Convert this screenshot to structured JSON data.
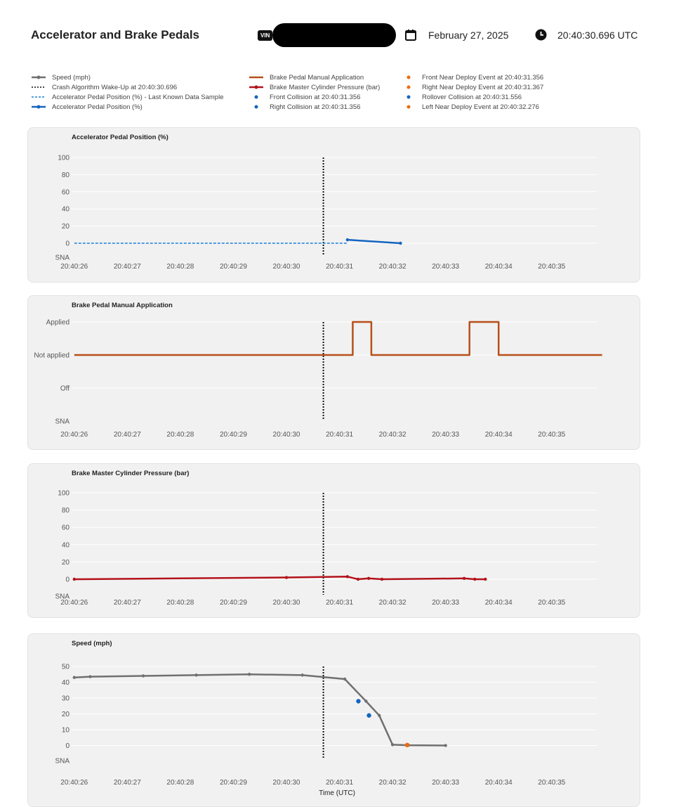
{
  "header": {
    "title": "Accelerator and Brake Pedals",
    "vin_label": "VIN",
    "date": "February 27, 2025",
    "time": "20:40:30.696 UTC"
  },
  "colors": {
    "speed": "#707070",
    "crash_line": "#111111",
    "accel_last_known": "#1f7fd6",
    "accel": "#1565c0",
    "brake_manual": "#b8501a",
    "brake_pressure": "#b3121b",
    "collision_dot": "#1565c0",
    "near_deploy_dot": "#f06a10",
    "grid": "#ffffff"
  },
  "legend": {
    "col1": [
      {
        "label": "Speed (mph)",
        "icon": "line-dot-gray"
      },
      {
        "label": "Crash Algorithm Wake-Up at 20:40:30.696",
        "icon": "dotted-black"
      },
      {
        "label": "Accelerator Pedal Position (%) - Last Known Data Sample",
        "icon": "dashed-blue"
      },
      {
        "label": "Accelerator Pedal Position (%)",
        "icon": "line-dot-blue"
      }
    ],
    "col2": [
      {
        "label": "Brake Pedal Manual Application",
        "icon": "line-orange"
      },
      {
        "label": "Brake Master Cylinder Pressure (bar)",
        "icon": "line-dot-red"
      },
      {
        "label": "Front Collision at 20:40:31.356",
        "icon": "dot-blue"
      },
      {
        "label": "Right Collision at 20:40:31.356",
        "icon": "dot-blue"
      }
    ],
    "col3": [
      {
        "label": "Front Near Deploy Event at 20:40:31.356",
        "icon": "dot-orange"
      },
      {
        "label": "Right Near Deploy Event at 20:40:31.367",
        "icon": "dot-orange"
      },
      {
        "label": "Rollover Collision at 20:40:31.556",
        "icon": "dot-blue"
      },
      {
        "label": "Left Near Deploy Event at 20:40:32.276",
        "icon": "dot-orange"
      }
    ]
  },
  "x_axis_title": "Time (UTC)",
  "chart_data": [
    {
      "type": "line",
      "title": "Accelerator Pedal Position (%)",
      "x_ticks": [
        "20:40:26",
        "20:40:27",
        "20:40:28",
        "20:40:29",
        "20:40:30",
        "20:40:31",
        "20:40:32",
        "20:40:33",
        "20:40:34",
        "20:40:35"
      ],
      "x_range": [
        25.95,
        35.85
      ],
      "y_ticks": [
        "100",
        "80",
        "60",
        "40",
        "20",
        "0",
        "SNA"
      ],
      "y_range_note": "SNA category below 0",
      "crash_wakeup_x": 30.696,
      "series": [
        {
          "name": "Accelerator Pedal Position (%) - Last Known Data Sample",
          "style": "dashed",
          "points": [
            [
              26.0,
              0
            ],
            [
              31.15,
              0
            ]
          ]
        },
        {
          "name": "Accelerator Pedal Position (%)",
          "style": "solid",
          "points": [
            [
              31.15,
              4
            ],
            [
              32.15,
              0
            ]
          ]
        }
      ]
    },
    {
      "type": "line",
      "title": "Brake Pedal Manual Application",
      "x_ticks": [
        "20:40:26",
        "20:40:27",
        "20:40:28",
        "20:40:29",
        "20:40:30",
        "20:40:31",
        "20:40:32",
        "20:40:33",
        "20:40:34",
        "20:40:35"
      ],
      "x_range": [
        25.95,
        35.85
      ],
      "y_categories": [
        "Applied",
        "Not applied",
        "Off",
        "SNA"
      ],
      "crash_wakeup_x": 30.696,
      "series": [
        {
          "name": "Brake Pedal Manual Application",
          "style": "step",
          "points": [
            [
              26.0,
              "Not applied"
            ],
            [
              31.25,
              "Not applied"
            ],
            [
              31.25,
              "Applied"
            ],
            [
              31.6,
              "Applied"
            ],
            [
              31.6,
              "Not applied"
            ],
            [
              33.45,
              "Not applied"
            ],
            [
              33.45,
              "Applied"
            ],
            [
              34.0,
              "Applied"
            ],
            [
              34.0,
              "Not applied"
            ],
            [
              35.95,
              "Not applied"
            ]
          ]
        }
      ]
    },
    {
      "type": "line",
      "title": "Brake Master Cylinder Pressure (bar)",
      "x_ticks": [
        "20:40:26",
        "20:40:27",
        "20:40:28",
        "20:40:29",
        "20:40:30",
        "20:40:31",
        "20:40:32",
        "20:40:33",
        "20:40:34",
        "20:40:35"
      ],
      "x_range": [
        25.95,
        35.85
      ],
      "y_ticks": [
        "100",
        "80",
        "60",
        "40",
        "20",
        "0",
        "SNA"
      ],
      "crash_wakeup_x": 30.696,
      "series": [
        {
          "name": "Brake Master Cylinder Pressure (bar)",
          "style": "solid",
          "points": [
            [
              26.0,
              0
            ],
            [
              30.0,
              2
            ],
            [
              31.15,
              3
            ],
            [
              31.35,
              0
            ],
            [
              31.55,
              1
            ],
            [
              31.8,
              0
            ],
            [
              33.35,
              1
            ],
            [
              33.55,
              0
            ],
            [
              33.75,
              0
            ]
          ]
        }
      ]
    },
    {
      "type": "line",
      "title": "Speed (mph)",
      "x_ticks": [
        "20:40:26",
        "20:40:27",
        "20:40:28",
        "20:40:29",
        "20:40:30",
        "20:40:31",
        "20:40:32",
        "20:40:33",
        "20:40:34",
        "20:40:35"
      ],
      "x_range": [
        25.95,
        35.85
      ],
      "y_ticks": [
        "50",
        "40",
        "30",
        "20",
        "10",
        "0",
        "SNA"
      ],
      "crash_wakeup_x": 30.696,
      "series": [
        {
          "name": "Speed (mph)",
          "style": "solid",
          "points": [
            [
              26.0,
              43
            ],
            [
              26.3,
              43.5
            ],
            [
              27.3,
              44
            ],
            [
              28.3,
              44.5
            ],
            [
              29.3,
              45
            ],
            [
              30.3,
              44.5
            ],
            [
              31.1,
              42
            ],
            [
              31.5,
              28
            ],
            [
              31.75,
              19
            ],
            [
              32.0,
              0.5
            ],
            [
              32.3,
              0.2
            ],
            [
              33.0,
              0
            ]
          ]
        },
        {
          "name": "Front Collision at 20:40:31.356",
          "style": "marker",
          "color_key": "collision_dot",
          "points": [
            [
              31.356,
              28
            ]
          ]
        },
        {
          "name": "Rollover Collision at 20:40:31.556",
          "style": "marker",
          "color_key": "collision_dot",
          "points": [
            [
              31.556,
              19
            ]
          ]
        },
        {
          "name": "Left Near Deploy Event at 20:40:32.276",
          "style": "marker",
          "color_key": "near_deploy_dot",
          "points": [
            [
              32.276,
              0.3
            ]
          ]
        }
      ]
    }
  ]
}
